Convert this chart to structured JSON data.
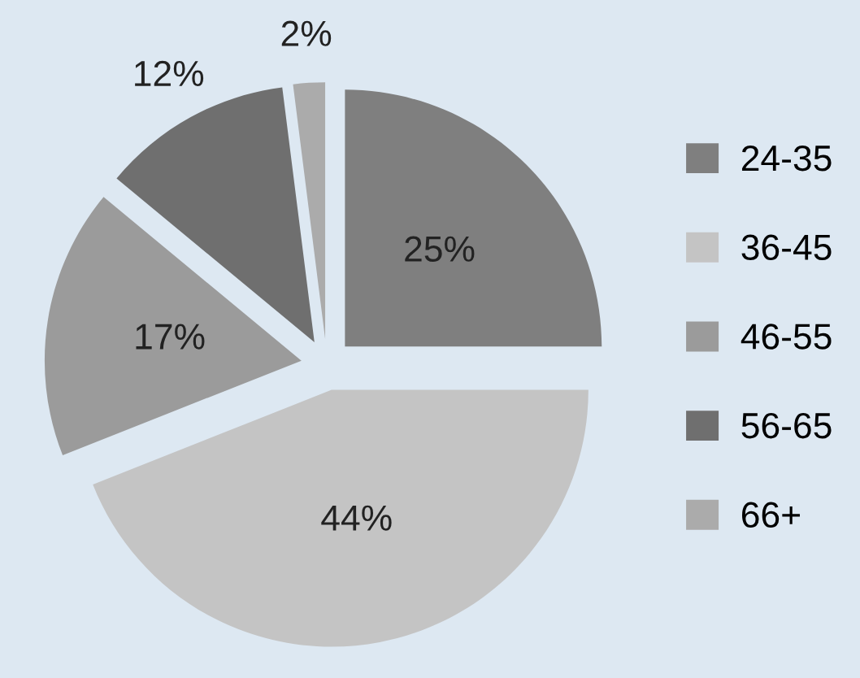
{
  "chart_data": {
    "type": "pie",
    "categories": [
      "24-35",
      "36-45",
      "46-55",
      "56-65",
      "66+"
    ],
    "values": [
      25,
      44,
      17,
      12,
      2
    ],
    "colors": [
      "#7f7f7f",
      "#c4c4c4",
      "#9b9b9b",
      "#6f6f6f",
      "#ababab"
    ],
    "value_labels": [
      "25%",
      "44%",
      "17%",
      "12%",
      "2%"
    ],
    "legend": "right"
  }
}
